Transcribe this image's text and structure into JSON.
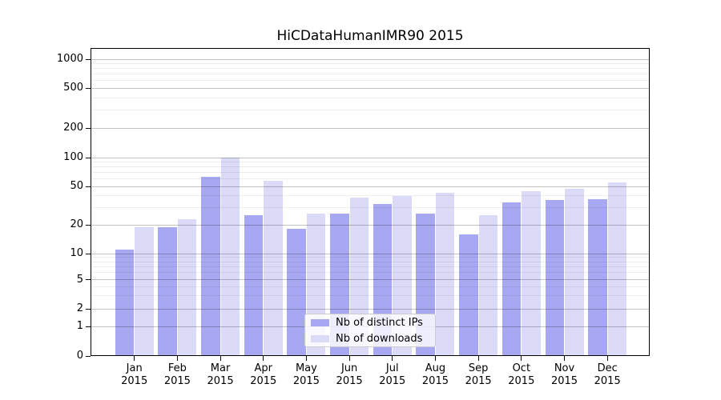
{
  "chart_data": {
    "type": "bar",
    "title": "HiCDataHumanIMR90 2015",
    "categories": [
      "Jan 2015",
      "Feb 2015",
      "Mar 2015",
      "Apr 2015",
      "May 2015",
      "Jun 2015",
      "Jul 2015",
      "Aug 2015",
      "Sep 2015",
      "Oct 2015",
      "Nov 2015",
      "Dec 2015"
    ],
    "series": [
      {
        "name": "Nb of distinct IPs",
        "color": "#a8a8f2",
        "values": [
          11,
          19,
          63,
          25,
          18,
          26,
          33,
          26,
          16,
          34,
          36,
          37
        ]
      },
      {
        "name": "Nb of downloads",
        "color": "#dbdbf8",
        "values": [
          19,
          23,
          100,
          57,
          26,
          38,
          40,
          43,
          25,
          45,
          47,
          55
        ]
      }
    ],
    "yscale": "symlog",
    "ytick_values": [
      0,
      1,
      2,
      5,
      10,
      20,
      50,
      100,
      200,
      500,
      1000
    ],
    "ytick_labels": [
      "0",
      "1",
      "2",
      "5",
      "10",
      "20",
      "50",
      "100",
      "200",
      "500",
      "1000"
    ],
    "minor_grid_values": [
      3,
      4,
      6,
      7,
      8,
      9,
      30,
      40,
      60,
      70,
      80,
      90,
      300,
      400,
      600,
      700,
      800,
      900
    ],
    "ylim": [
      0,
      1300
    ],
    "grid": true,
    "legend_position": "lower center",
    "xlabel": "",
    "ylabel": ""
  },
  "colors": {
    "major_grid": "rgba(0,0,0,0.24)",
    "minor_grid": "rgba(0,0,0,0.07)",
    "axis": "#000000",
    "background": "#ffffff"
  }
}
